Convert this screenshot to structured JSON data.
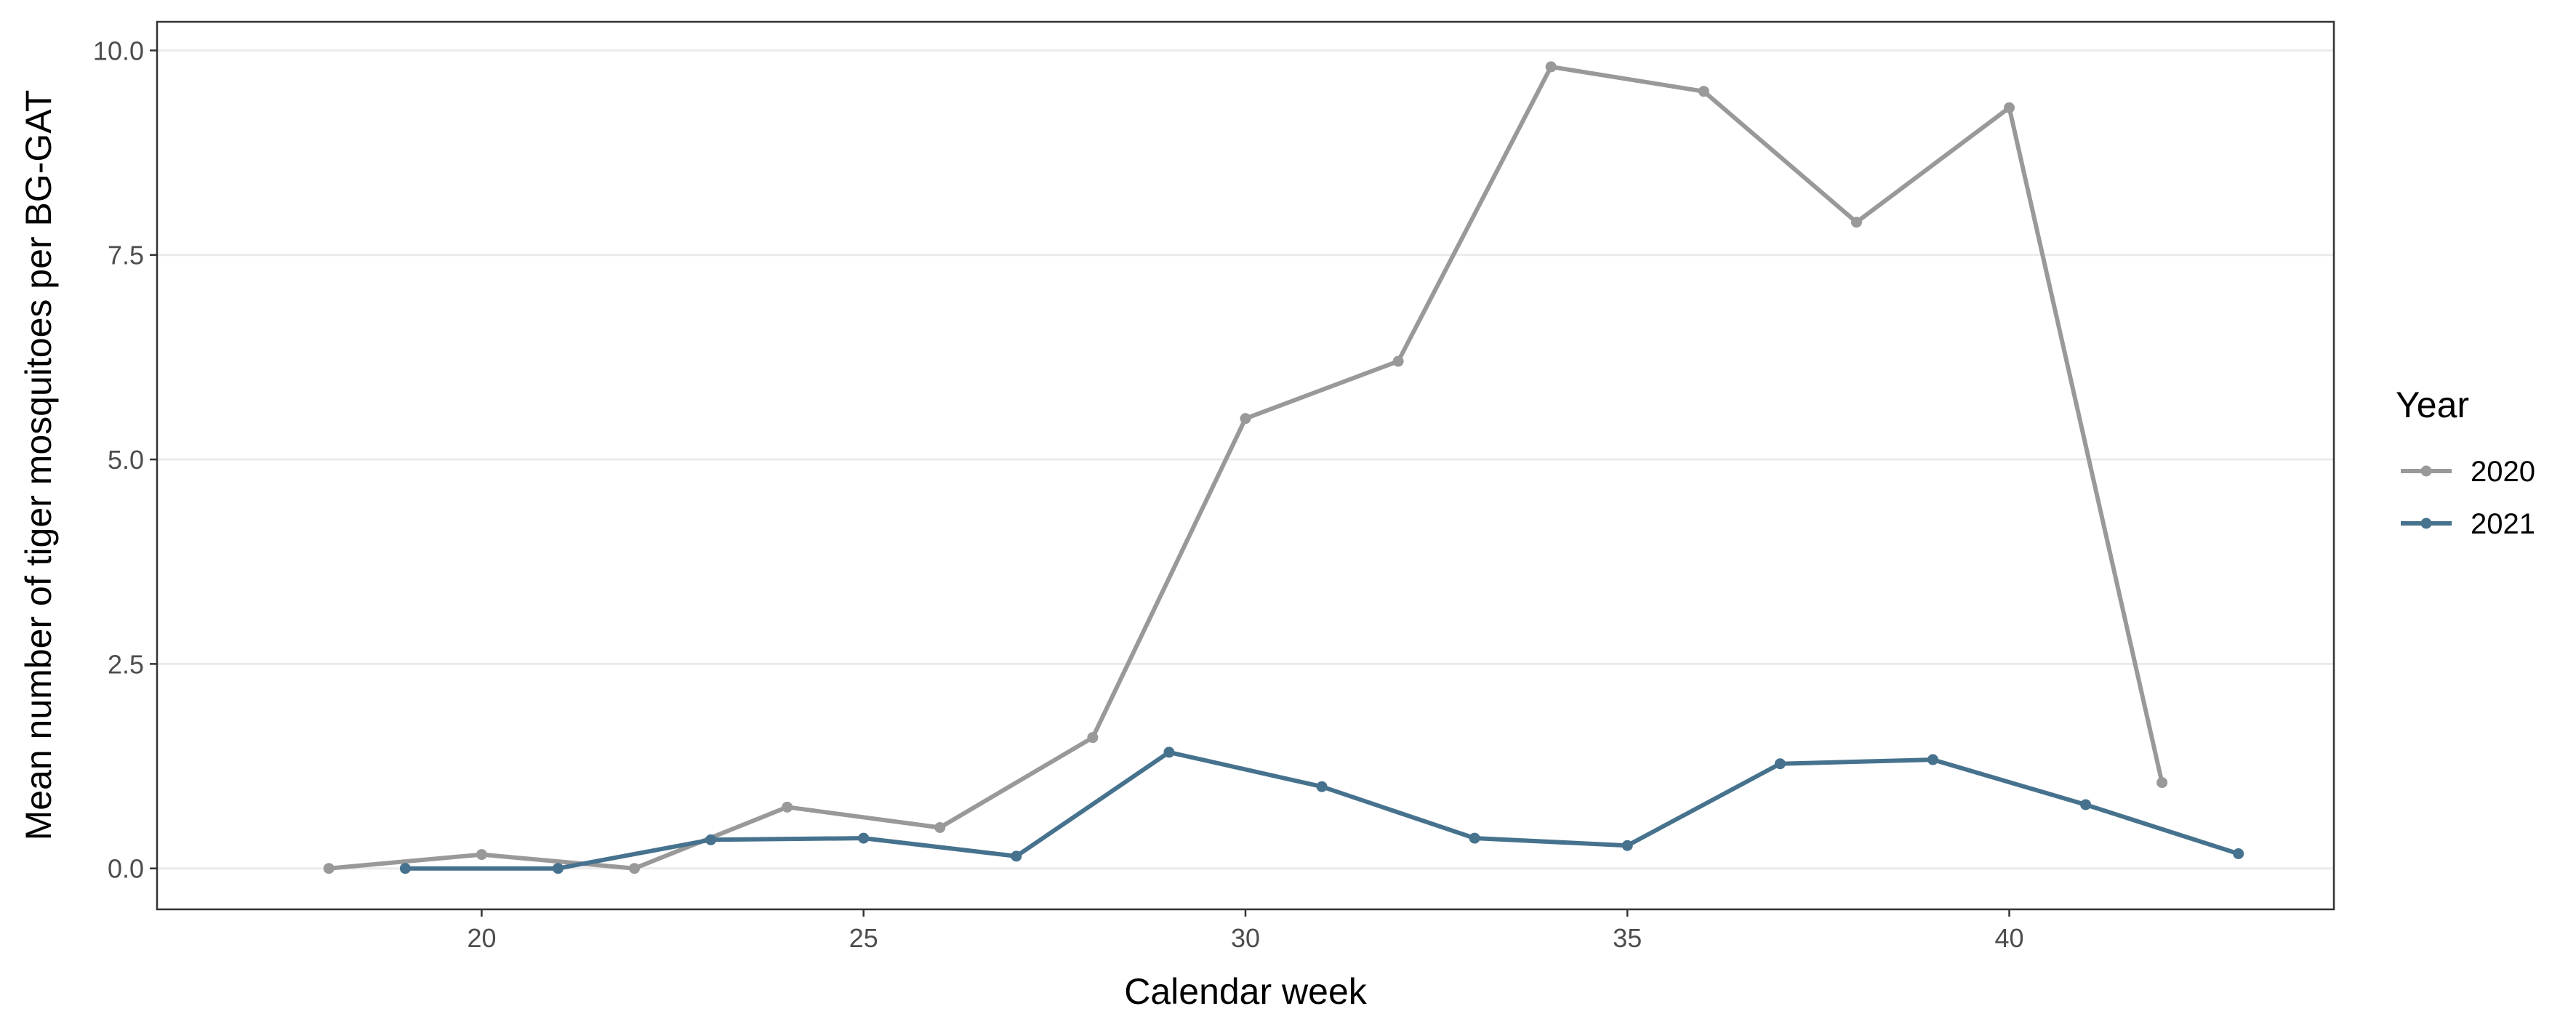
{
  "chart_data": {
    "type": "line",
    "xlabel": "Calendar week",
    "ylabel": "Mean number of tiger mosquitoes per BG-GAT",
    "xlim": [
      15.75,
      44.25
    ],
    "ylim": [
      -0.5,
      10.35
    ],
    "x_ticks": [
      20,
      25,
      30,
      35,
      40
    ],
    "y_ticks": [
      0.0,
      2.5,
      5.0,
      7.5,
      10.0
    ],
    "x_tick_labels": [
      "20",
      "25",
      "30",
      "35",
      "40"
    ],
    "y_tick_labels": [
      "0.0",
      "2.5",
      "5.0",
      "7.5",
      "10.0"
    ],
    "grid": "horizontal major",
    "legend": {
      "title": "Year",
      "placement": "right"
    },
    "series": [
      {
        "name": "2020",
        "color": "#999999",
        "x": [
          18,
          20,
          22,
          24,
          26,
          28,
          30,
          32,
          34,
          36,
          38,
          40,
          42
        ],
        "y": [
          0.0,
          0.17,
          0.0,
          0.75,
          0.5,
          1.6,
          5.5,
          6.2,
          9.8,
          9.5,
          7.9,
          9.3,
          1.05
        ]
      },
      {
        "name": "2021",
        "color": "#46728e",
        "x": [
          19,
          21,
          23,
          25,
          27,
          29,
          31,
          33,
          35,
          37,
          39,
          41,
          43
        ],
        "y": [
          0.0,
          0.0,
          0.35,
          0.37,
          0.15,
          1.42,
          1.0,
          0.37,
          0.28,
          1.28,
          1.33,
          0.78,
          0.18
        ]
      }
    ]
  }
}
